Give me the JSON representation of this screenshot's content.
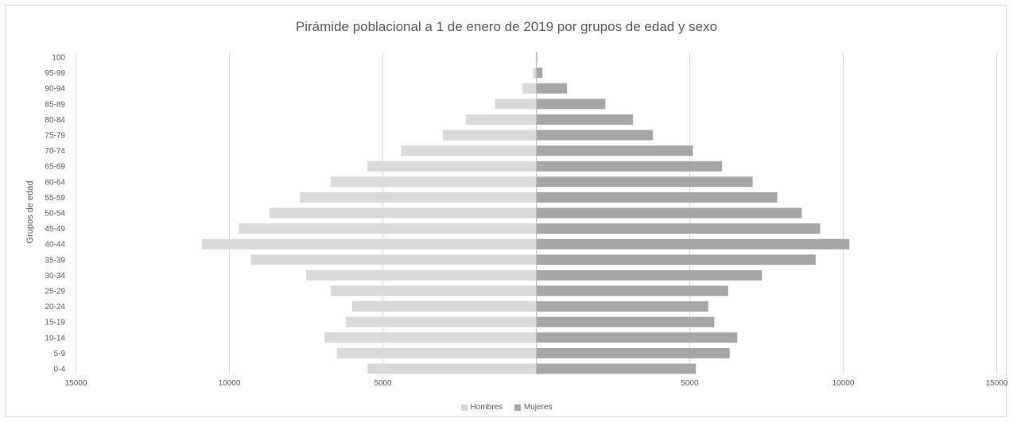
{
  "chart_data": {
    "type": "bar",
    "orientation": "horizontal",
    "title": "Pirámide poblacional a 1 de enero de 2019 por grupos de edad y sexo",
    "ylabel": "Grupos de edad",
    "xlabel": "",
    "xlim": [
      -15000,
      15000
    ],
    "x_ticks": [
      "15000",
      "10000",
      "5000",
      "5000",
      "10000",
      "15000"
    ],
    "grid": true,
    "legend_position": "bottom",
    "categories": [
      "0-4",
      "5-9",
      "10-14",
      "15-19",
      "20-24",
      "25-29",
      "30-34",
      "35-39",
      "40-44",
      "45-49",
      "50-54",
      "55-59",
      "60-64",
      "65-69",
      "70-74",
      "75-79",
      "80-84",
      "85-89",
      "90-94",
      "95-99",
      "100"
    ],
    "series": [
      {
        "name": "Hombres",
        "color": "#d9d9d9",
        "values": [
          5500,
          6500,
          6900,
          6200,
          6000,
          6700,
          7500,
          9300,
          10900,
          9700,
          8700,
          7700,
          6700,
          5500,
          4400,
          3050,
          2300,
          1350,
          450,
          100,
          20
        ]
      },
      {
        "name": "Mujeres",
        "color": "#a6a6a6",
        "values": [
          5200,
          6300,
          6550,
          5800,
          5600,
          6250,
          7350,
          9100,
          10200,
          9250,
          8650,
          7850,
          7050,
          6050,
          5100,
          3800,
          3150,
          2250,
          1000,
          200,
          30
        ]
      }
    ]
  }
}
